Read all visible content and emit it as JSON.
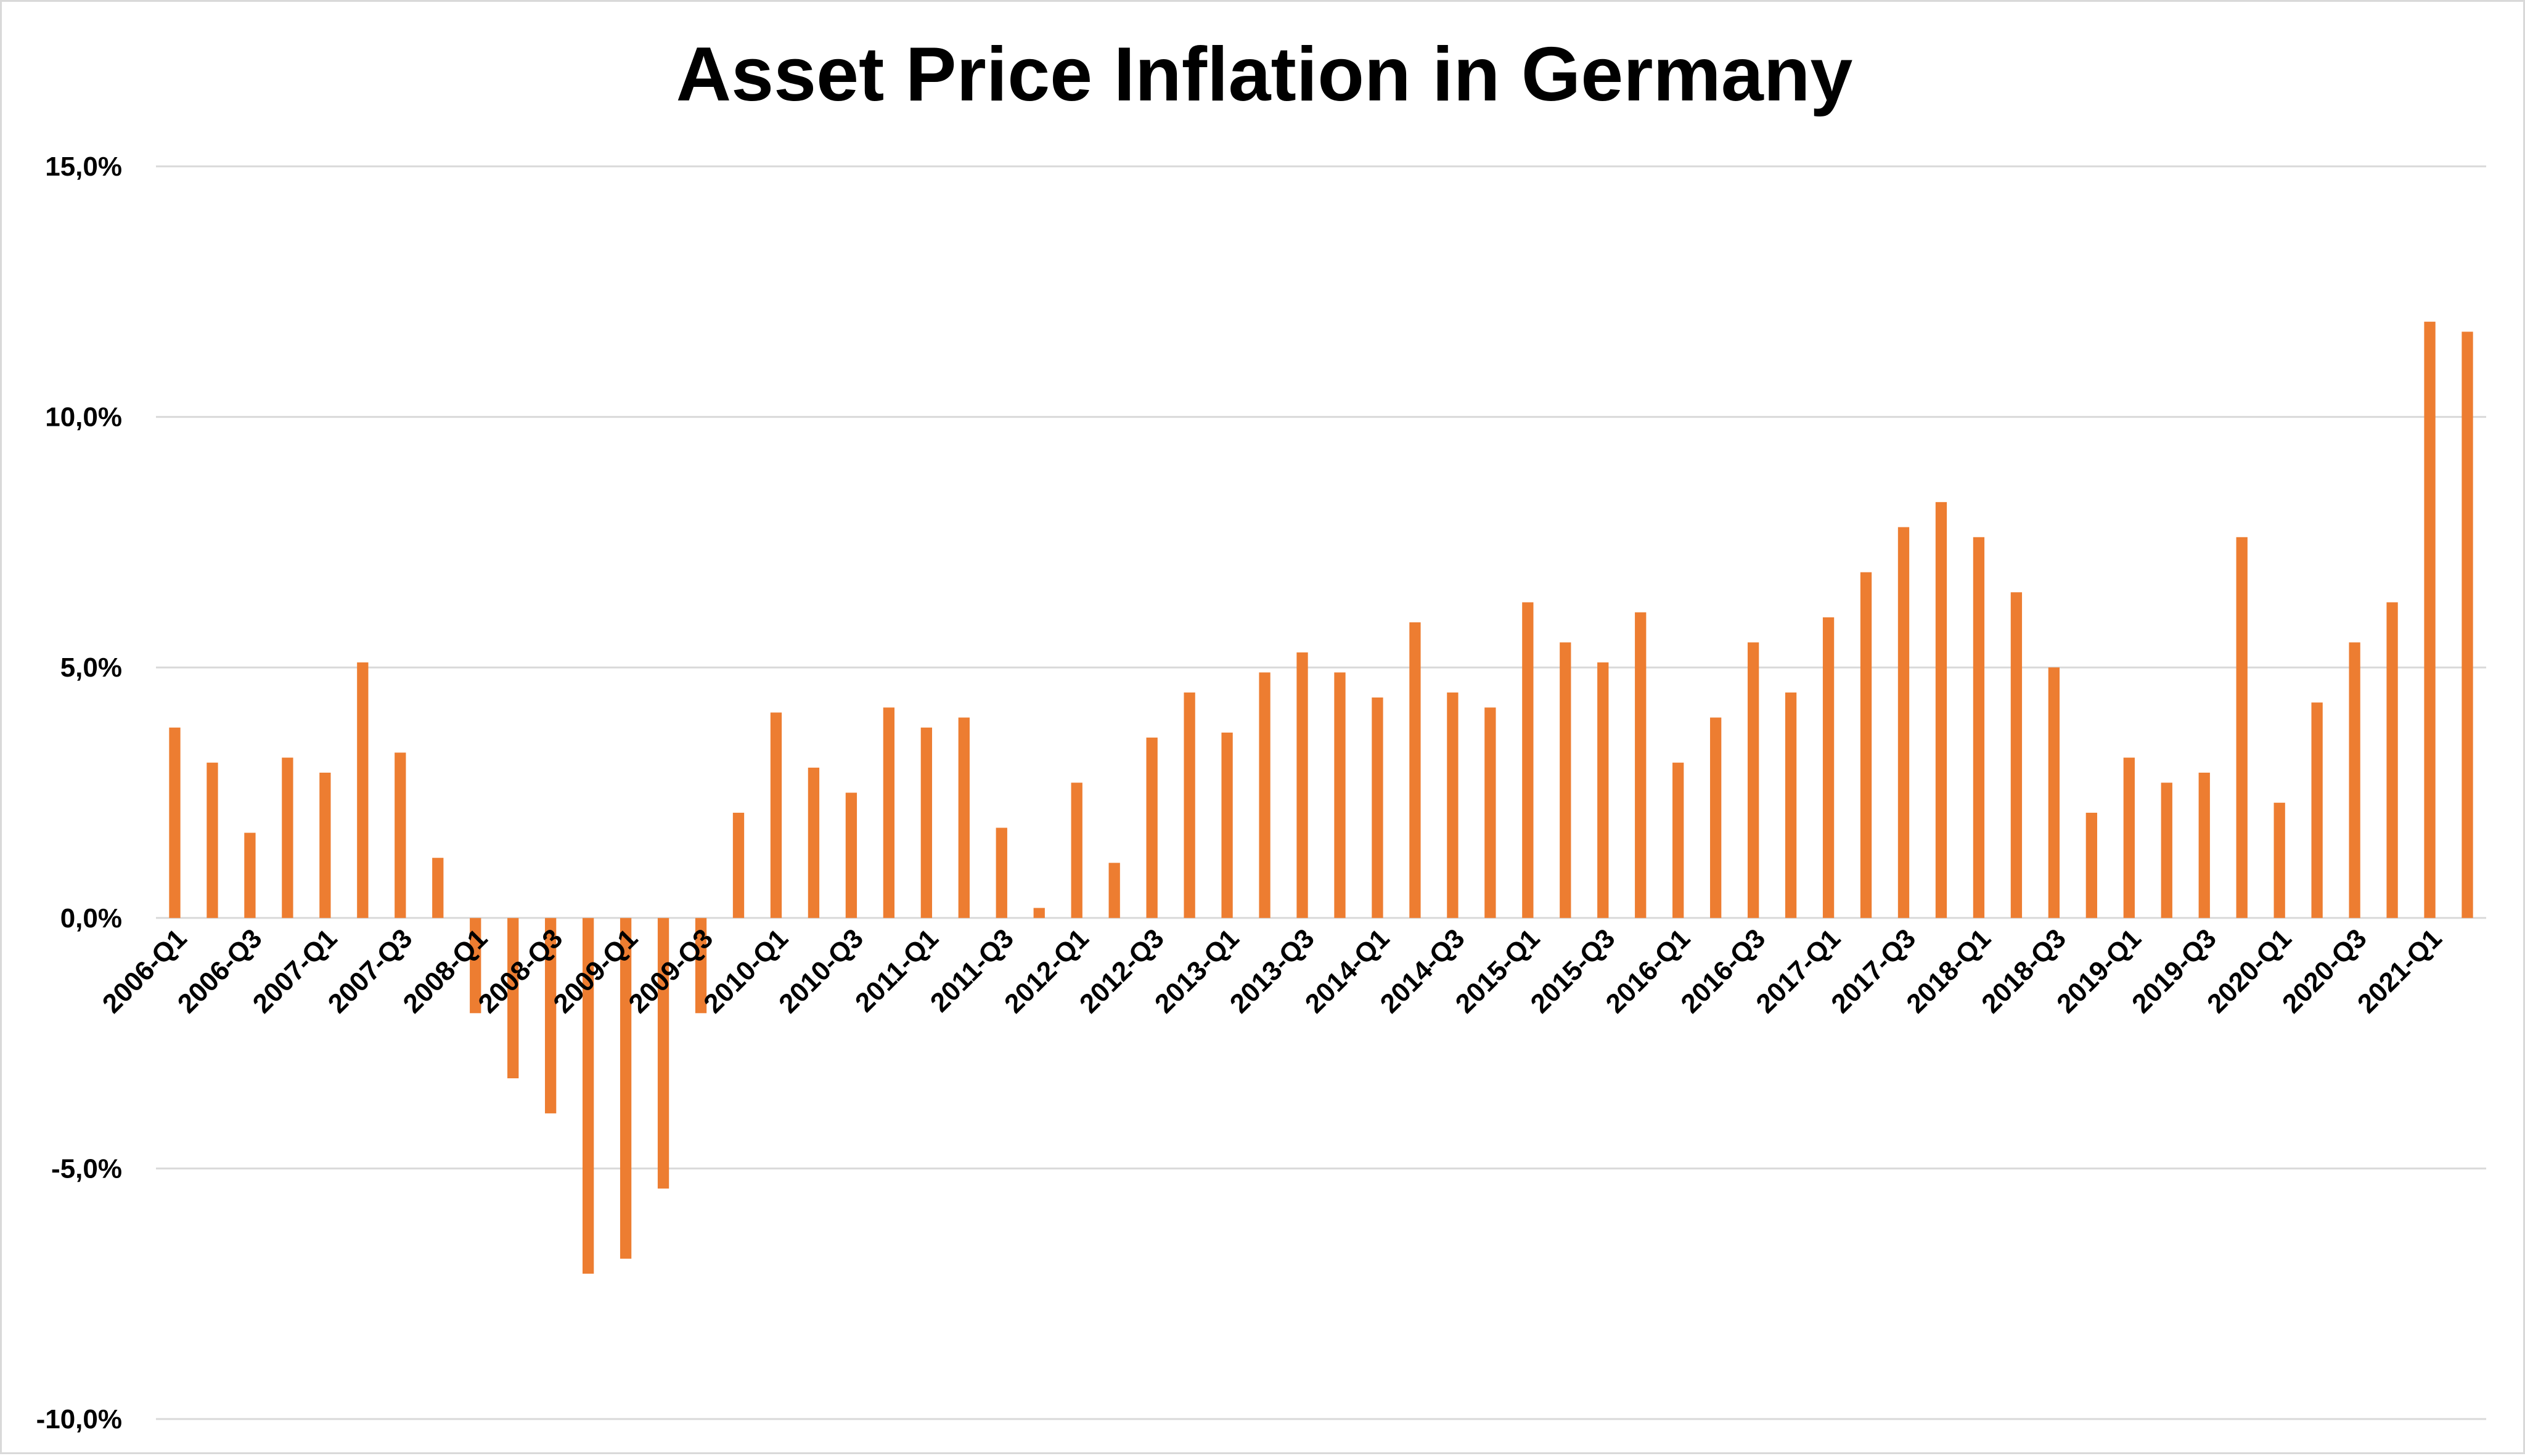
{
  "chart_data": {
    "type": "bar",
    "title": "Asset Price Inflation in Germany",
    "xlabel": "",
    "ylabel": "",
    "ylim": [
      -10,
      15
    ],
    "yticks": [
      {
        "value": 15,
        "label": "15,0%"
      },
      {
        "value": 10,
        "label": "10,0%"
      },
      {
        "value": 5,
        "label": "5,0%"
      },
      {
        "value": 0,
        "label": "0,0%"
      },
      {
        "value": -5,
        "label": "-5,0%"
      },
      {
        "value": -10,
        "label": "-10,0%"
      }
    ],
    "grid": true,
    "bar_color": "#ed7d31",
    "grid_color": "#d9d9d9",
    "categories": [
      "2006-Q1",
      "2006-Q2",
      "2006-Q3",
      "2006-Q4",
      "2007-Q1",
      "2007-Q2",
      "2007-Q3",
      "2007-Q4",
      "2008-Q1",
      "2008-Q2",
      "2008-Q3",
      "2008-Q4",
      "2009-Q1",
      "2009-Q2",
      "2009-Q3",
      "2009-Q4",
      "2010-Q1",
      "2010-Q2",
      "2010-Q3",
      "2010-Q4",
      "2011-Q1",
      "2011-Q2",
      "2011-Q3",
      "2011-Q4",
      "2012-Q1",
      "2012-Q2",
      "2012-Q3",
      "2012-Q4",
      "2013-Q1",
      "2013-Q2",
      "2013-Q3",
      "2013-Q4",
      "2014-Q1",
      "2014-Q2",
      "2014-Q3",
      "2014-Q4",
      "2015-Q1",
      "2015-Q2",
      "2015-Q3",
      "2015-Q4",
      "2016-Q1",
      "2016-Q2",
      "2016-Q3",
      "2016-Q4",
      "2017-Q1",
      "2017-Q2",
      "2017-Q3",
      "2017-Q4",
      "2018-Q1",
      "2018-Q2",
      "2018-Q3",
      "2018-Q4",
      "2019-Q1",
      "2019-Q2",
      "2019-Q3",
      "2019-Q4",
      "2020-Q1",
      "2020-Q2",
      "2020-Q3",
      "2020-Q4",
      "2021-Q1",
      "2021-Q2"
    ],
    "visible_category_labels": [
      "2006-Q1",
      "2006-Q3",
      "2007-Q1",
      "2007-Q3",
      "2008-Q1",
      "2008-Q3",
      "2009-Q1",
      "2009-Q3",
      "2010-Q1",
      "2010-Q3",
      "2011-Q1",
      "2011-Q3",
      "2012-Q1",
      "2012-Q3",
      "2013-Q1",
      "2013-Q3",
      "2014-Q1",
      "2014-Q3",
      "2015-Q1",
      "2015-Q3",
      "2016-Q1",
      "2016-Q3",
      "2017-Q1",
      "2017-Q3",
      "2018-Q1",
      "2018-Q3",
      "2019-Q1",
      "2019-Q3",
      "2020-Q1",
      "2020-Q3",
      "2021-Q1"
    ],
    "values": [
      3.8,
      3.1,
      1.7,
      3.2,
      2.9,
      5.1,
      3.3,
      1.2,
      -1.9,
      -3.2,
      -3.9,
      -7.1,
      -6.8,
      -5.4,
      -1.9,
      2.1,
      4.1,
      3.0,
      2.5,
      4.2,
      3.8,
      4.0,
      1.8,
      0.2,
      2.7,
      1.1,
      3.6,
      4.5,
      3.7,
      4.9,
      5.3,
      4.9,
      4.4,
      5.9,
      4.5,
      4.2,
      6.3,
      5.5,
      5.1,
      6.1,
      3.1,
      4.0,
      5.5,
      4.5,
      6.0,
      6.9,
      7.8,
      8.3,
      7.6,
      6.5,
      5.0,
      2.1,
      3.2,
      2.7,
      2.9,
      7.6,
      2.3,
      4.3,
      5.5,
      6.3,
      11.9,
      11.7
    ]
  }
}
